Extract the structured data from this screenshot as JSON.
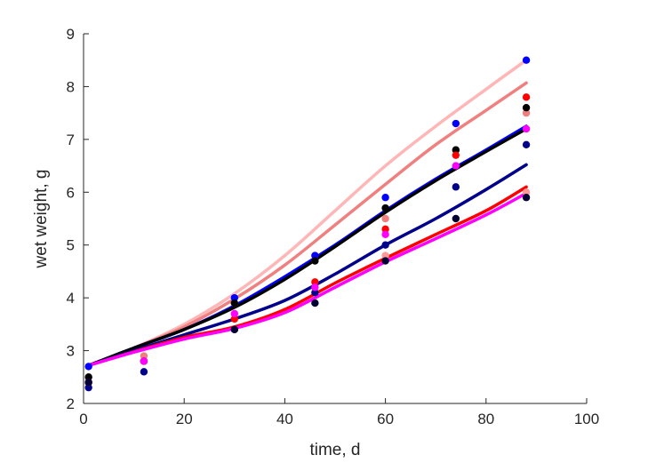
{
  "chart_data": {
    "type": "line",
    "xlabel": "time, d",
    "ylabel": "wet weight, g",
    "xlim": [
      0,
      100
    ],
    "ylim": [
      2,
      9
    ],
    "xticks": [
      0,
      20,
      40,
      60,
      80,
      100
    ],
    "yticks": [
      2,
      3,
      4,
      5,
      6,
      7,
      8,
      9
    ],
    "grid": false,
    "legend": "none",
    "series": [
      {
        "color": "#ffb6b6",
        "line": {
          "x": [
            1,
            10,
            20,
            30,
            40,
            50,
            60,
            70,
            80,
            88
          ],
          "y": [
            2.72,
            3.05,
            3.5,
            4.08,
            4.8,
            5.65,
            6.5,
            7.25,
            7.95,
            8.5
          ]
        },
        "points": {
          "x": [
            88
          ],
          "y": [
            7.5
          ]
        }
      },
      {
        "color": "#f08080",
        "line": {
          "x": [
            1,
            10,
            20,
            30,
            40,
            50,
            60,
            70,
            80,
            88
          ],
          "y": [
            2.72,
            3.05,
            3.45,
            3.98,
            4.62,
            5.38,
            6.15,
            6.9,
            7.55,
            8.07
          ]
        },
        "points": {
          "x": [
            1,
            12,
            30,
            46,
            60,
            74,
            88
          ],
          "y": [
            2.5,
            2.9,
            3.9,
            4.7,
            5.5,
            6.8,
            7.5
          ]
        }
      },
      {
        "color": "#0000ff",
        "line": {
          "x": [
            1,
            10,
            20,
            30,
            40,
            50,
            60,
            70,
            80,
            88
          ],
          "y": [
            2.72,
            3.05,
            3.4,
            3.85,
            4.4,
            5.0,
            5.65,
            6.25,
            6.8,
            7.25
          ]
        },
        "points": {
          "x": [
            1,
            12,
            30,
            46,
            60,
            74,
            88
          ],
          "y": [
            2.7,
            2.8,
            4.0,
            4.8,
            5.9,
            7.3,
            8.5
          ]
        }
      },
      {
        "color": "#000000",
        "line": {
          "x": [
            1,
            10,
            20,
            30,
            40,
            50,
            60,
            70,
            80,
            88
          ],
          "y": [
            2.72,
            3.05,
            3.4,
            3.82,
            4.35,
            4.97,
            5.62,
            6.22,
            6.77,
            7.2
          ]
        },
        "points": {
          "x": [
            1,
            12,
            30,
            46,
            60,
            74,
            88
          ],
          "y": [
            2.5,
            2.8,
            3.9,
            4.7,
            5.7,
            6.8,
            7.6
          ]
        }
      },
      {
        "color": "#00008b",
        "line": {
          "x": [
            1,
            10,
            20,
            30,
            40,
            50,
            60,
            70,
            80,
            88
          ],
          "y": [
            2.72,
            3.0,
            3.3,
            3.6,
            3.95,
            4.45,
            5.0,
            5.5,
            6.05,
            6.52
          ]
        },
        "points": {
          "x": [
            1,
            12,
            30,
            46,
            60,
            74,
            88
          ],
          "y": [
            2.3,
            2.6,
            3.4,
            4.1,
            5.0,
            6.1,
            6.9
          ]
        }
      },
      {
        "color": "#ff0000",
        "line": {
          "x": [
            1,
            10,
            20,
            30,
            40,
            50,
            60,
            70,
            80,
            88
          ],
          "y": [
            2.72,
            2.98,
            3.25,
            3.45,
            3.78,
            4.28,
            4.75,
            5.2,
            5.65,
            6.1
          ]
        },
        "points": {
          "x": [
            1,
            12,
            30,
            46,
            60,
            74,
            88
          ],
          "y": [
            2.4,
            2.8,
            3.6,
            4.3,
            5.3,
            6.7,
            7.8
          ]
        }
      },
      {
        "color": "#ff00ff",
        "line": {
          "x": [
            1,
            10,
            20,
            30,
            40,
            50,
            60,
            70,
            80,
            88
          ],
          "y": [
            2.72,
            2.97,
            3.22,
            3.42,
            3.72,
            4.2,
            4.68,
            5.12,
            5.57,
            5.98
          ]
        },
        "points": {
          "x": [
            1,
            12,
            30,
            46,
            60,
            74,
            88
          ],
          "y": [
            2.4,
            2.8,
            3.7,
            4.2,
            5.2,
            6.5,
            7.2
          ]
        }
      },
      {
        "color": "#ff9999",
        "line": null,
        "points": {
          "x": [
            60,
            88
          ],
          "y": [
            4.8,
            6.0
          ]
        }
      },
      {
        "color": "#000033",
        "line": null,
        "points": {
          "x": [
            1,
            30,
            46,
            60,
            74,
            88
          ],
          "y": [
            2.4,
            3.4,
            3.9,
            4.7,
            5.5,
            5.9
          ]
        }
      }
    ]
  }
}
